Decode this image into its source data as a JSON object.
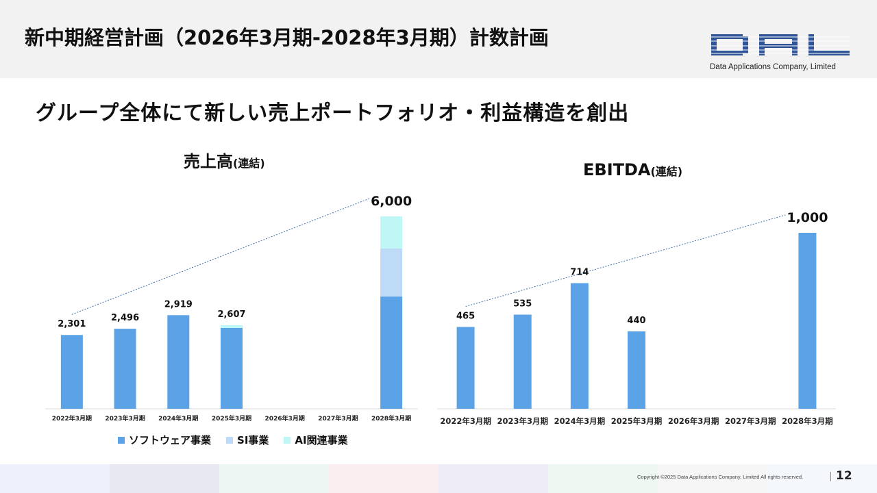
{
  "page": {
    "title": "新中期経営計画（2026年3月期-2028年3月期）計数計画",
    "subtitle": "グループ全体にて新しい売上ポートフォリオ・利益構造を創出",
    "logo_text": "DAL",
    "logo_caption": "Data Applications Company, Limited",
    "copyright": "Copyright ©2025 Data Applications Company, Limited All rights reserved.",
    "page_number": "12",
    "brand_color": "#2f5597"
  },
  "charts": {
    "sales_title": "売上高",
    "sales_title_suffix": "(連結)",
    "ebitda_title": "EBITDA",
    "ebitda_title_suffix": "(連結)"
  },
  "chart_data": [
    {
      "type": "bar",
      "stacked": true,
      "title": "売上高(連結)",
      "categories": [
        "2022年3月期",
        "2023年3月期",
        "2024年3月期",
        "2025年3月期",
        "2026年3月期",
        "2027年3月期",
        "2028年3月期"
      ],
      "series": [
        {
          "name": "ソフトウェア事業",
          "color": "#5ba3e6",
          "values": [
            2301,
            2496,
            2919,
            2520,
            null,
            null,
            3500
          ]
        },
        {
          "name": "SI事業",
          "color": "#bddaf6",
          "values": [
            0,
            0,
            0,
            0,
            null,
            null,
            1500
          ]
        },
        {
          "name": "AI関連事業",
          "color": "#bff7f7",
          "values": [
            0,
            0,
            0,
            87,
            null,
            null,
            1000
          ]
        }
      ],
      "totals": [
        2301,
        2496,
        2919,
        2607,
        null,
        null,
        6000
      ],
      "total_labels": [
        "2,301",
        "2,496",
        "2,919",
        "2,607",
        "",
        "",
        "6,000"
      ],
      "trend_line": {
        "from": "2022年3月期",
        "to": "2028年3月期"
      },
      "ylim": [
        0,
        6000
      ],
      "grid": false,
      "legend": "bottom"
    },
    {
      "type": "bar",
      "title": "EBITDA(連結)",
      "categories": [
        "2022年3月期",
        "2023年3月期",
        "2024年3月期",
        "2025年3月期",
        "2026年3月期",
        "2027年3月期",
        "2028年3月期"
      ],
      "values": [
        465,
        535,
        714,
        440,
        null,
        null,
        1000
      ],
      "value_labels": [
        "465",
        "535",
        "714",
        "440",
        "",
        "",
        "1,000"
      ],
      "color": "#5ba3e6",
      "trend_line": {
        "from": "2022年3月期",
        "to": "2028年3月期"
      },
      "ylim": [
        0,
        1000
      ],
      "grid": false
    }
  ],
  "footer_colors": [
    "#eef1fb",
    "#e8e8f3",
    "#edf6f2",
    "#fbeef0",
    "#eeecf6",
    "#eef7f1",
    "#f6f6f6",
    "#f4f7fb"
  ]
}
